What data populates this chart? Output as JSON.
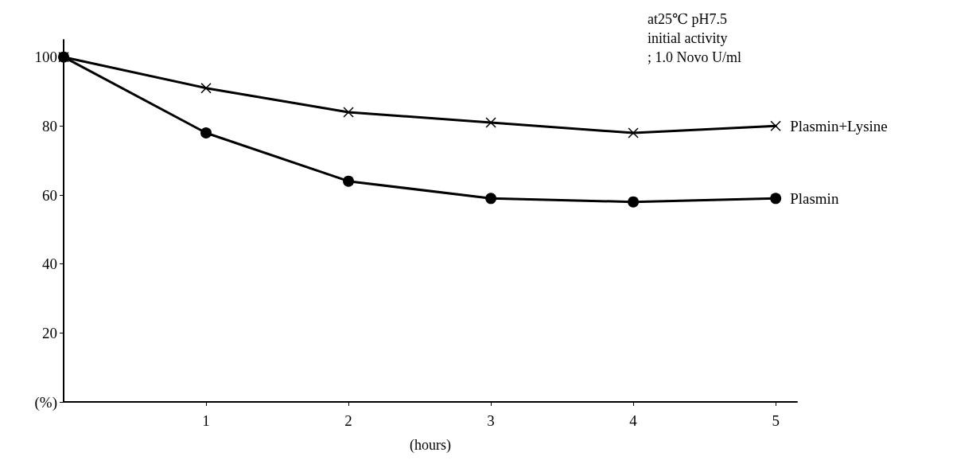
{
  "chart_data": {
    "type": "line",
    "xlabel": "(hours)",
    "annotations": [
      "at25℃ pH7.5",
      "initial activity",
      "; 1.0 Novo U/ml"
    ],
    "x": [
      0,
      1,
      2,
      3,
      4,
      5
    ],
    "series": [
      {
        "name": "Plasmin+Lysine",
        "color": "#000000",
        "marker": "cross",
        "values": [
          100,
          91,
          84,
          81,
          78,
          80
        ]
      },
      {
        "name": "Plasmin",
        "color": "#000000",
        "marker": "circle",
        "values": [
          100,
          78,
          64,
          59,
          58,
          59
        ]
      }
    ],
    "xlim": [
      0,
      5.15
    ],
    "xticks": [
      1,
      2,
      3,
      4,
      5
    ],
    "ylim": [
      0,
      105
    ],
    "yticks": [
      {
        "value": 0,
        "label": "(%)"
      },
      20,
      40,
      60,
      80,
      100
    ],
    "grid": false,
    "legend": false,
    "line_style": "solid"
  }
}
